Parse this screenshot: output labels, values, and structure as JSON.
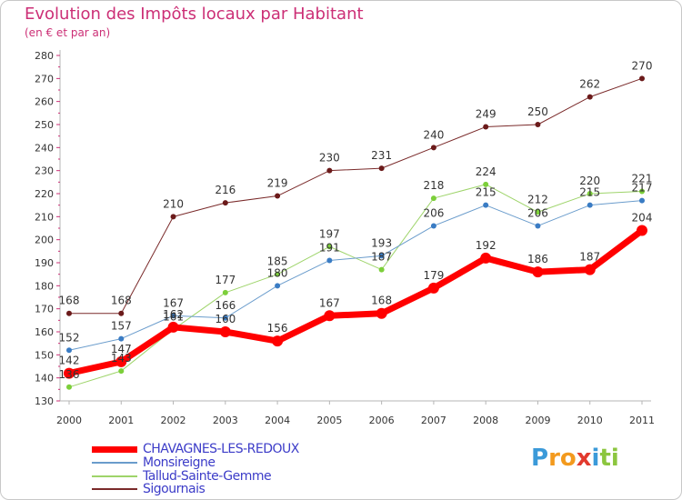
{
  "title": "Evolution des Impôts locaux par Habitant",
  "subtitle": "(en € et par an)",
  "brand": {
    "letters": [
      "P",
      "r",
      "o",
      "x",
      "i",
      "t",
      "i"
    ],
    "colors": [
      "#3b9ad9",
      "#f39a1e",
      "#f39a1e",
      "#e23a2e",
      "#3b9ad9",
      "#8cc63f",
      "#8cc63f"
    ]
  },
  "chart_data": {
    "type": "line",
    "title": "Evolution des Impôts locaux par Habitant",
    "subtitle": "(en € et par an)",
    "xlabel": "",
    "ylabel": "",
    "x": [
      "2000",
      "2001",
      "2002",
      "2003",
      "2004",
      "2005",
      "2006",
      "2007",
      "2008",
      "2009",
      "2010",
      "2011"
    ],
    "ylim": [
      130,
      280
    ],
    "yticks": [
      130,
      140,
      150,
      160,
      170,
      180,
      190,
      200,
      210,
      220,
      230,
      240,
      250,
      260,
      270,
      280
    ],
    "grid": false,
    "legend_position": "bottom-left",
    "series": [
      {
        "name": "Sigournais",
        "color": "#7a2a2a",
        "markerColor": "#6b1a1a",
        "width": 1,
        "values": [
          168,
          168,
          210,
          216,
          219,
          230,
          231,
          240,
          249,
          250,
          262,
          270
        ],
        "labels": [
          "168",
          "168",
          "210",
          "216",
          "219",
          "230",
          "231",
          "240",
          "249",
          "250",
          "262",
          "270"
        ]
      },
      {
        "name": "Tallud-Sainte-Gemme",
        "color": "#9ed46a",
        "markerColor": "#7ccf3a",
        "width": 1,
        "values": [
          136,
          143,
          161,
          177,
          185,
          197,
          187,
          218,
          224,
          212,
          220,
          221
        ],
        "labels": [
          "136",
          "143",
          "161",
          "177",
          "185",
          "197",
          "187",
          "218",
          "224",
          "212",
          "220",
          "221"
        ]
      },
      {
        "name": "Monsireigne",
        "color": "#6a9ccc",
        "markerColor": "#3a7cc4",
        "width": 1,
        "values": [
          152,
          157,
          167,
          166,
          180,
          191,
          193,
          206,
          215,
          206,
          215,
          217
        ],
        "labels": [
          "152",
          "157",
          "167",
          "166",
          "180",
          "191",
          "193",
          "206",
          "215",
          "206",
          "215",
          "217"
        ]
      },
      {
        "name": "CHAVAGNES-LES-REDOUX",
        "color": "#ff0000",
        "markerColor": "#ff0000",
        "width": 7,
        "values": [
          142,
          147,
          162,
          160,
          156,
          167,
          168,
          179,
          192,
          186,
          187,
          204
        ],
        "labels": [
          "142",
          "147",
          "162",
          "160",
          "156",
          "167",
          "168",
          "179",
          "192",
          "186",
          "187",
          "204"
        ]
      }
    ],
    "legend": [
      "CHAVAGNES-LES-REDOUX",
      "Monsireigne",
      "Tallud-Sainte-Gemme",
      "Sigournais"
    ]
  }
}
